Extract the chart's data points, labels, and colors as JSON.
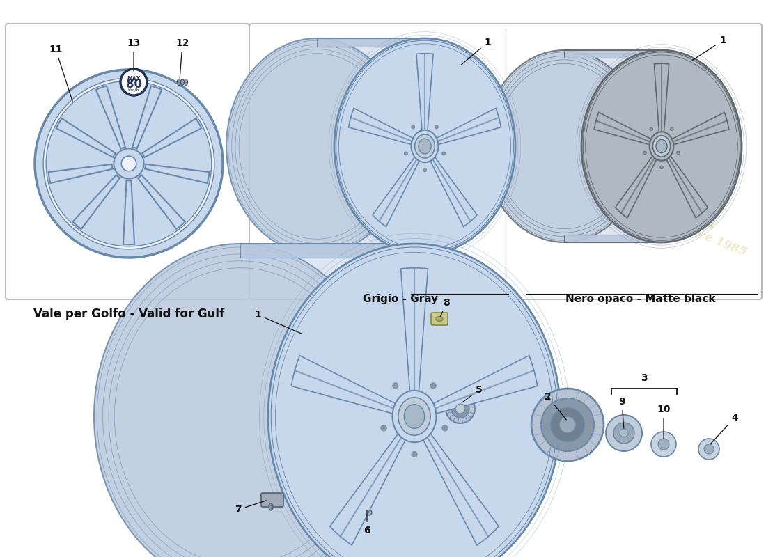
{
  "bg_color": "#ffffff",
  "box_edge_color": "#bbbbbb",
  "wheel_blue_fill": "#c8d8ec",
  "wheel_blue_edge": "#6888aa",
  "wheel_dark_fill": "#b0b8c4",
  "wheel_dark_edge": "#606870",
  "barrel_fill": "#d0dcee",
  "barrel_side_fill": "#b8c8dc",
  "text_color": "#111111",
  "watermark_color": "#c8b840",
  "label_gulf": "Vale per Golfo - Valid for Gulf",
  "label_gray": "Grigio - Gray",
  "label_matte": "Nero opaco - Matte black"
}
